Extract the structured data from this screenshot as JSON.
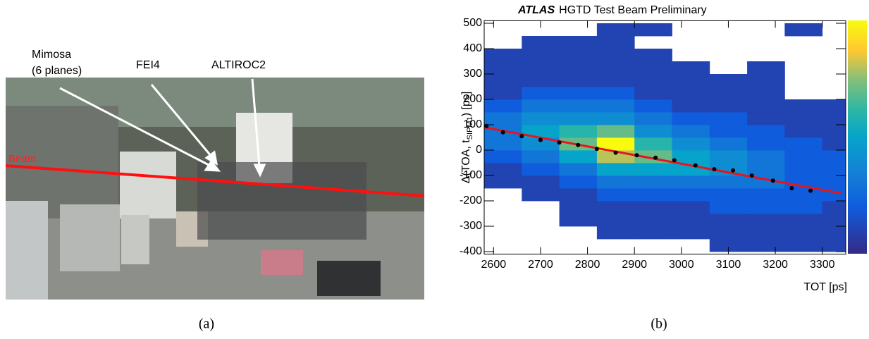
{
  "figure": {
    "photo": {
      "labels": {
        "mimosa": "Mimosa",
        "mimosa_sub": "(6 planes)",
        "fei4": "FEI4",
        "altiroc": "ALTIROC2",
        "beam": "Beam"
      },
      "caption": "(a)"
    },
    "caption_b": "(b)"
  },
  "chart_data": {
    "type": "heatmap",
    "title_bold": "ATLAS",
    "title": "HGTD Test Beam Preliminary",
    "xlabel": "TOT [ps]",
    "ylabel_main": "Δ(TOA, t",
    "ylabel_sub": "SIPM1",
    "ylabel_end": ") [ps]",
    "xlim": [
      2580,
      3350
    ],
    "ylim": [
      -410,
      510
    ],
    "xticks": [
      2600,
      2700,
      2800,
      2900,
      3000,
      3100,
      3200,
      3300
    ],
    "yticks": [
      -400,
      -300,
      -200,
      -100,
      0,
      100,
      200,
      300,
      400,
      500
    ],
    "xbins": [
      2580,
      2660,
      2740,
      2820,
      2900,
      2980,
      3060,
      3140,
      3220,
      3300,
      3350
    ],
    "ybins": [
      -400,
      -350,
      -300,
      -250,
      -200,
      -150,
      -100,
      -50,
      0,
      50,
      100,
      150,
      200,
      250,
      300,
      350,
      400,
      450,
      500
    ],
    "z": [
      [
        null,
        null,
        null,
        null,
        null,
        1,
        1,
        2,
        3,
        3,
        3,
        2,
        1,
        1,
        1,
        1,
        null,
        null
      ],
      [
        null,
        null,
        null,
        null,
        1,
        1,
        2,
        3,
        4,
        5,
        4,
        3,
        2,
        1,
        1,
        1,
        1,
        null
      ],
      [
        null,
        null,
        1,
        1,
        1,
        2,
        3,
        5,
        7,
        6,
        4,
        3,
        2,
        1,
        1,
        1,
        1,
        null
      ],
      [
        null,
        1,
        1,
        1,
        2,
        3,
        5,
        8,
        10,
        7,
        4,
        3,
        2,
        1,
        1,
        1,
        1,
        1
      ],
      [
        null,
        1,
        1,
        1,
        2,
        3,
        5,
        7,
        6,
        4,
        3,
        2,
        1,
        1,
        1,
        1,
        null,
        1
      ],
      [
        null,
        1,
        1,
        1,
        2,
        3,
        5,
        5,
        4,
        3,
        2,
        1,
        1,
        1,
        1,
        null,
        null,
        null
      ],
      [
        1,
        1,
        1,
        2,
        2,
        3,
        4,
        4,
        3,
        2,
        2,
        1,
        1,
        1,
        null,
        null,
        null,
        null
      ],
      [
        1,
        1,
        1,
        2,
        2,
        3,
        3,
        3,
        2,
        2,
        1,
        1,
        1,
        1,
        1,
        null,
        null,
        null
      ],
      [
        1,
        1,
        1,
        2,
        2,
        2,
        2,
        2,
        2,
        1,
        1,
        1,
        null,
        null,
        null,
        null,
        null,
        1
      ],
      [
        1,
        1,
        1,
        1,
        2,
        2,
        2,
        2,
        1,
        1,
        1,
        1,
        null,
        null,
        null,
        null,
        null,
        null
      ]
    ],
    "profile": {
      "x": [
        2585,
        2620,
        2660,
        2700,
        2740,
        2780,
        2820,
        2860,
        2905,
        2945,
        2985,
        3030,
        3070,
        3110,
        3150,
        3195,
        3235,
        3275
      ],
      "values": [
        95,
        70,
        55,
        40,
        30,
        20,
        5,
        -10,
        -20,
        -30,
        -40,
        -60,
        -75,
        -80,
        -100,
        -120,
        -150,
        -160
      ],
      "color": "#000000"
    },
    "fit": {
      "x": [
        2580,
        3340
      ],
      "values": [
        90,
        -170
      ],
      "color": "#e8141c"
    }
  }
}
